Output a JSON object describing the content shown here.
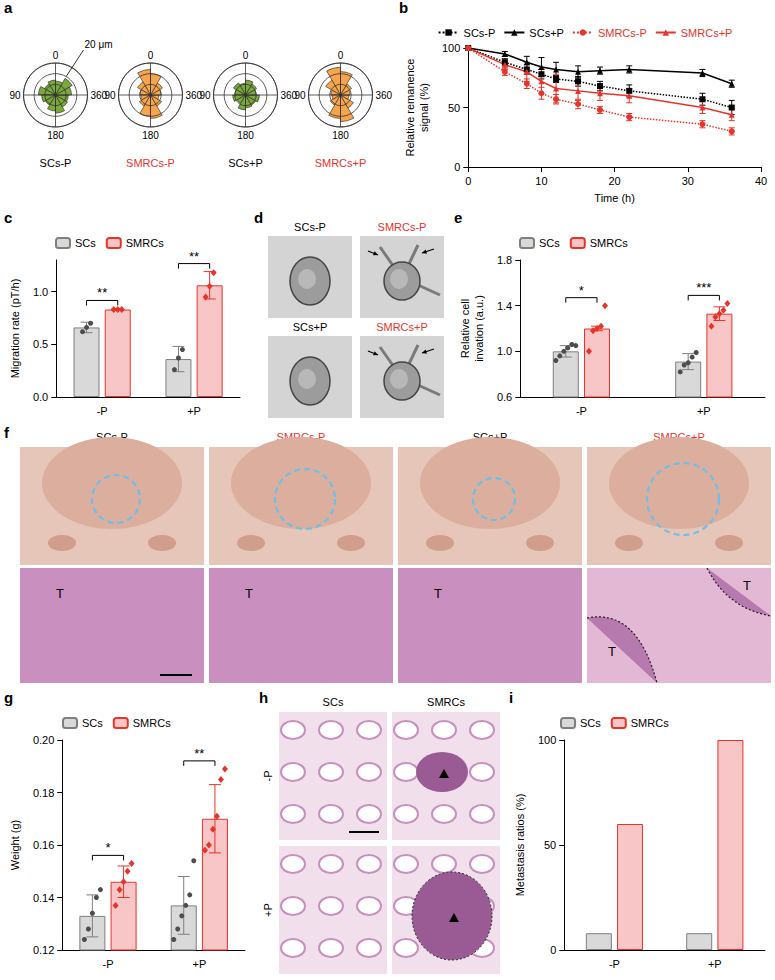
{
  "chart_data": [
    {
      "panel": "a",
      "type": "polar_histogram",
      "bins": [
        0,
        30,
        60,
        90,
        120,
        150,
        180,
        210,
        240,
        270,
        300,
        330,
        360
      ],
      "rlim": [
        0,
        30
      ],
      "rticks": [
        10,
        20,
        30
      ],
      "angle_ticks": [
        0,
        90,
        180,
        {
          "value": 270,
          "label": "360"
        }
      ],
      "tick_labels": "x",
      "grid": true,
      "radius_annotation": {
        "value": 20,
        "label": "20 μm"
      },
      "series": [
        {
          "name": "SCs-P",
          "color": "#7aa83c",
          "label_color": "#000000",
          "values": [
            14,
            12,
            16,
            13,
            11,
            15,
            17,
            13,
            12,
            15,
            18,
            13
          ]
        },
        {
          "name": "SMRCs-P",
          "color": "#f6a54a",
          "label_color": "#e8332a",
          "values": [
            24,
            14,
            10,
            9,
            12,
            20,
            22,
            12,
            8,
            10,
            13,
            20
          ]
        },
        {
          "name": "SCs+P",
          "color": "#7aa83c",
          "label_color": "#000000",
          "values": [
            11,
            13,
            10,
            12,
            9,
            14,
            12,
            11,
            13,
            10,
            12,
            14
          ]
        },
        {
          "name": "SMRCs+P",
          "color": "#f6a54a",
          "label_color": "#e8332a",
          "values": [
            26,
            16,
            9,
            8,
            11,
            22,
            25,
            14,
            8,
            9,
            12,
            22
          ]
        }
      ]
    },
    {
      "panel": "b",
      "type": "line",
      "x": [
        0,
        5,
        8,
        10,
        12,
        15,
        18,
        22,
        32,
        36
      ],
      "xlim": [
        0,
        40
      ],
      "xticks": [
        0,
        10,
        20,
        30,
        40
      ],
      "ylim": [
        0,
        100
      ],
      "yticks": [
        0,
        50,
        100
      ],
      "x_label": "Time (h)",
      "y_label": "Relative remanence signal (%)",
      "legend": "top",
      "grid": false,
      "series": [
        {
          "name": "SCs-P",
          "color": "#000000",
          "label_color": "#000000",
          "line_style": "dotted",
          "marker": "square",
          "values": [
            100,
            88,
            82,
            78,
            74,
            72,
            68,
            64,
            57,
            50
          ],
          "errors": [
            0,
            3,
            4,
            4,
            3,
            4,
            4,
            5,
            5,
            6
          ]
        },
        {
          "name": "SCs+P",
          "color": "#000000",
          "label_color": "#000000",
          "line_style": "solid",
          "marker": "triangle",
          "values": [
            100,
            95,
            88,
            84,
            82,
            80,
            81,
            82,
            79,
            70
          ],
          "errors": [
            0,
            2,
            5,
            8,
            6,
            5,
            3,
            3,
            3,
            3
          ]
        },
        {
          "name": "SMRCs-P",
          "color": "#e8332a",
          "label_color": "#e8332a",
          "line_style": "dotted",
          "marker": "circle",
          "values": [
            100,
            80,
            70,
            62,
            57,
            53,
            48,
            42,
            36,
            30
          ],
          "errors": [
            0,
            3,
            4,
            5,
            4,
            4,
            3,
            3,
            3,
            3
          ]
        },
        {
          "name": "SMRCs+P",
          "color": "#e8332a",
          "label_color": "#e8332a",
          "line_style": "solid",
          "marker": "triangle",
          "values": [
            100,
            86,
            80,
            72,
            66,
            64,
            62,
            60,
            50,
            44
          ],
          "errors": [
            0,
            4,
            8,
            10,
            12,
            8,
            6,
            6,
            5,
            5
          ]
        }
      ]
    },
    {
      "panel": "c",
      "type": "bar",
      "categories": [
        "-P",
        "+P"
      ],
      "ylim": [
        0,
        1.3
      ],
      "yticks": [
        {
          "value": 0,
          "label": "0.0"
        },
        {
          "value": 0.5,
          "label": "0.5"
        },
        {
          "value": 1,
          "label": "1.0"
        }
      ],
      "y_label": "Migration rate (pT/h)",
      "legend": "top",
      "grid": false,
      "series": [
        {
          "name": "SCs",
          "color": "#d9d9d9",
          "values": [
            0.66,
            0.36
          ],
          "errors": [
            0.05,
            0.12
          ],
          "points": [
            [
              0.62,
              0.66,
              0.7
            ],
            [
              0.26,
              0.37,
              0.45
            ]
          ]
        },
        {
          "name": "SMRCs",
          "color": "#f8c6c6",
          "values": [
            0.83,
            1.06
          ],
          "errors": [
            0.01,
            0.13
          ],
          "points": [
            [
              0.83,
              0.83,
              0.83
            ],
            [
              0.95,
              1.05,
              1.18
            ]
          ]
        }
      ],
      "significance": [
        {
          "category": "-P",
          "label": "**"
        },
        {
          "category": "+P",
          "label": "**"
        }
      ]
    },
    {
      "panel": "d",
      "type": "image",
      "labels": [
        "SCs-P",
        "SMRCs-P",
        "SCs+P",
        "SMRCs+P"
      ],
      "label_colors": [
        "#000000",
        "#e8332a",
        "#000000",
        "#e8332a"
      ]
    },
    {
      "panel": "e",
      "type": "bar",
      "categories": [
        "-P",
        "+P"
      ],
      "ylim": [
        0.6,
        1.8
      ],
      "yticks": [
        0.6,
        {
          "value": 1,
          "label": "1.0"
        },
        1.4,
        1.8
      ],
      "y_label": "Relative cell invation (a.u.)",
      "legend": "top",
      "grid": false,
      "series": [
        {
          "name": "SCs",
          "color": "#d9d9d9",
          "values": [
            1.0,
            0.91
          ],
          "errors": [
            0.05,
            0.07
          ],
          "points": [
            [
              0.92,
              0.96,
              1.0,
              1.03,
              1.06,
              1.05
            ],
            [
              0.82,
              0.88,
              0.9,
              0.95,
              0.99
            ]
          ]
        },
        {
          "name": "SMRCs",
          "color": "#f8c6c6",
          "values": [
            1.2,
            1.33
          ],
          "errors": [
            0.02,
            0.06
          ],
          "points": [
            [
              1.0,
              1.18,
              1.2,
              1.22,
              1.4
            ],
            [
              1.22,
              1.3,
              1.33,
              1.36,
              1.42
            ]
          ]
        }
      ],
      "significance": [
        {
          "category": "-P",
          "label": "*"
        },
        {
          "category": "+P",
          "label": "***"
        }
      ]
    },
    {
      "panel": "f",
      "type": "image",
      "labels": [
        "SCs-P",
        "SMRCs-P",
        "SCs+P",
        "SMRCs+P"
      ],
      "label_colors": [
        "#000000",
        "#e8332a",
        "#000000",
        "#e8332a"
      ],
      "region_labels": [
        [
          "T"
        ],
        [
          "T"
        ],
        [
          "T"
        ],
        [
          "T",
          "T"
        ]
      ]
    },
    {
      "panel": "g",
      "type": "bar",
      "categories": [
        "-P",
        "+P"
      ],
      "ylim": [
        0.12,
        0.2
      ],
      "yticks": [
        0.12,
        0.14,
        0.16,
        0.18,
        {
          "value": 0.2,
          "label": "0.20"
        }
      ],
      "y_label": "Weight (g)",
      "legend": "top",
      "grid": false,
      "series": [
        {
          "name": "SCs",
          "color": "#d9d9d9",
          "values": [
            0.133,
            0.137
          ],
          "errors": [
            0.008,
            0.011
          ],
          "points": [
            [
              0.124,
              0.128,
              0.134,
              0.14,
              0.143
            ],
            [
              0.124,
              0.128,
              0.133,
              0.137,
              0.141,
              0.154
            ]
          ]
        },
        {
          "name": "SMRCs",
          "color": "#f8c6c6",
          "values": [
            0.146,
            0.17
          ],
          "errors": [
            0.006,
            0.013
          ],
          "points": [
            [
              0.137,
              0.143,
              0.146,
              0.15,
              0.153
            ],
            [
              0.158,
              0.16,
              0.166,
              0.171,
              0.185,
              0.189
            ]
          ]
        }
      ],
      "significance": [
        {
          "category": "-P",
          "label": "*"
        },
        {
          "category": "+P",
          "label": "**"
        }
      ]
    },
    {
      "panel": "h",
      "type": "image",
      "columns": [
        "SCs",
        "SMRCs"
      ],
      "rows": [
        "-P",
        "+P"
      ]
    },
    {
      "panel": "i",
      "type": "bar",
      "categories": [
        "-P",
        "+P"
      ],
      "ylim": [
        0,
        100
      ],
      "yticks": [
        0,
        50,
        100
      ],
      "y_label": "Metastasis ratios (%)",
      "legend": "top",
      "grid": false,
      "series": [
        {
          "name": "SCs",
          "color": "#d9d9d9",
          "values": [
            8,
            8
          ]
        },
        {
          "name": "SMRCs",
          "color": "#f8c6c6",
          "values": [
            60,
            100
          ]
        }
      ]
    }
  ]
}
